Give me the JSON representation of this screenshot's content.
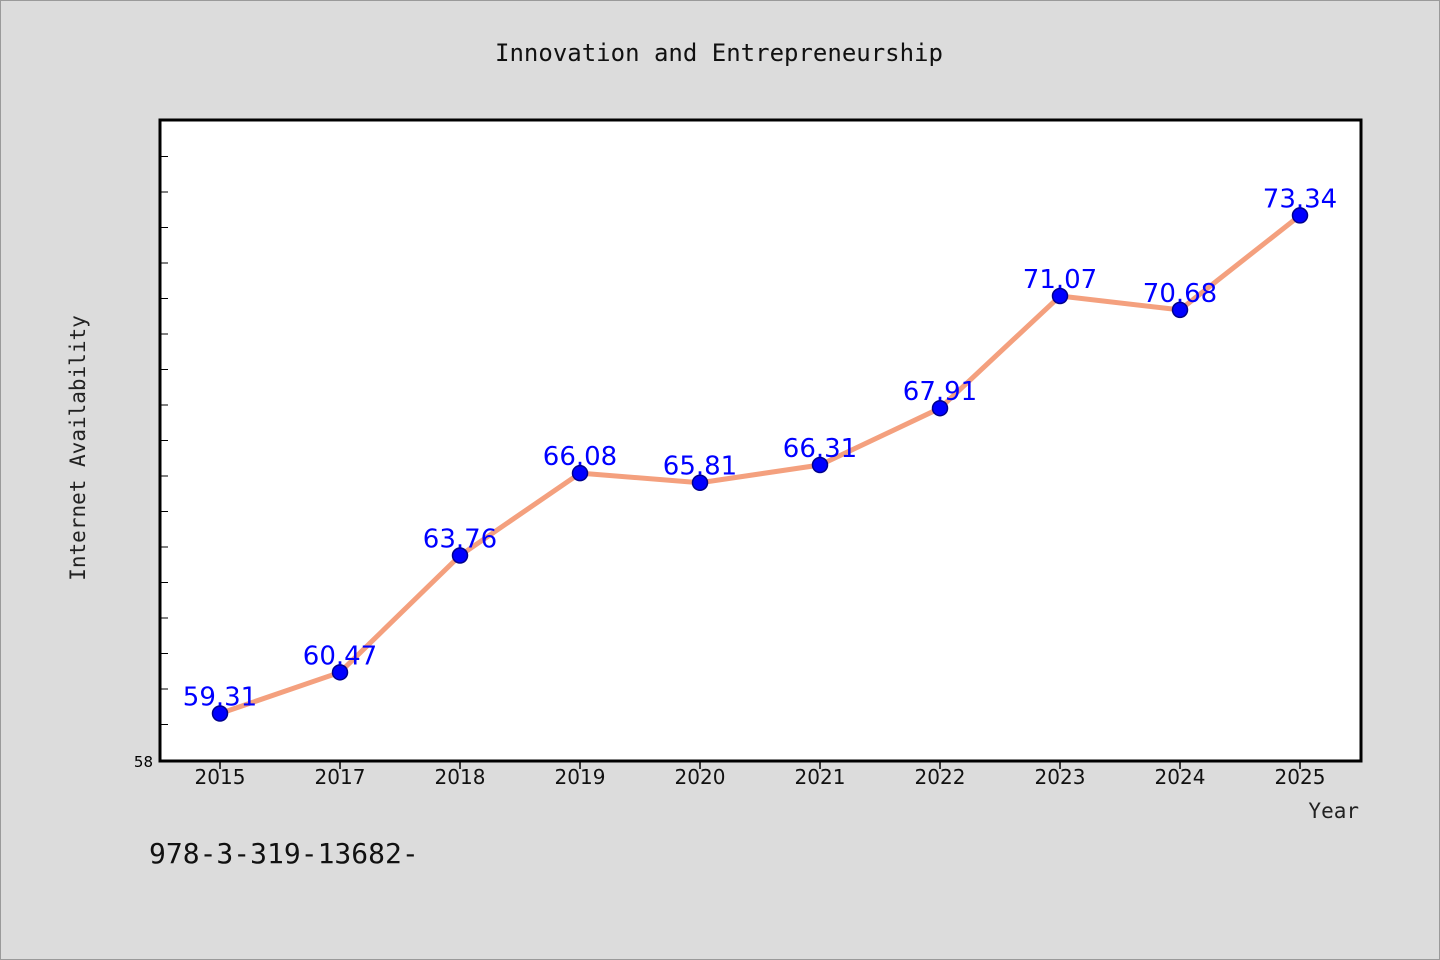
{
  "chart_data": {
    "type": "line",
    "title": "Innovation and Entrepreneurship",
    "xlabel": "Year",
    "ylabel": "Internet Availability",
    "categories": [
      "2015",
      "2017",
      "2018",
      "2019",
      "2020",
      "2021",
      "2022",
      "2023",
      "2024",
      "2025"
    ],
    "series": [
      {
        "values": [
          59.31,
          60.47,
          63.76,
          66.08,
          65.81,
          66.31,
          67.91,
          71.07,
          70.68,
          73.34
        ]
      }
    ],
    "data_labels": [
      "59.31",
      "60.47",
      "63.76",
      "66.08",
      "65.81",
      "66.31",
      "67.91",
      "71.07",
      "70.68",
      "73.34"
    ],
    "y_tick_labels": [
      "58"
    ],
    "ylim": [
      58,
      76
    ],
    "grid": false,
    "colors": {
      "line": "#f4a07e",
      "marker": "#0000ff",
      "marker_edge": "#00008b",
      "label": "#0000ff",
      "background": "#dcdcdc",
      "plot_background": "#ffffff"
    }
  },
  "footer_text": "978-3-319-13682-"
}
